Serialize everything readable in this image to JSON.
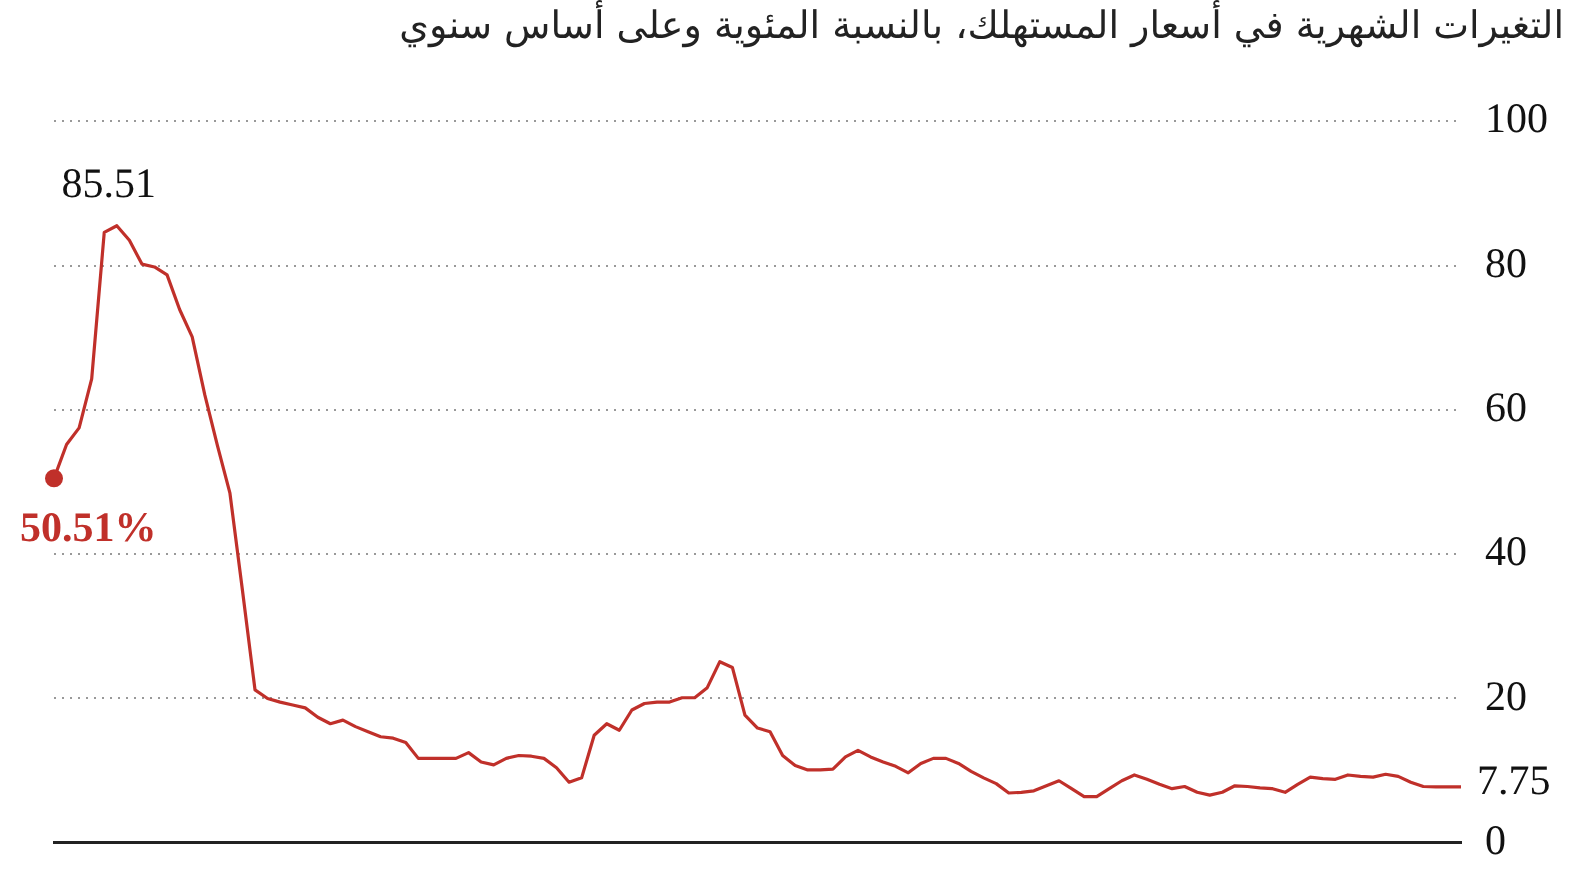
{
  "chart_data": {
    "type": "line",
    "title": "التغيرات الشهرية في أسعار المستهلك، بالنسبة المئوية وعلى أساس سنوي",
    "categories": [
      null,
      null,
      null,
      null,
      null,
      null,
      null,
      null,
      null,
      null,
      null,
      null,
      null,
      null,
      null,
      null,
      null,
      null,
      null,
      null,
      null,
      null,
      null,
      null,
      null,
      null,
      null,
      null,
      null,
      null,
      null,
      null,
      null,
      null,
      null,
      null,
      null,
      null,
      null,
      null,
      null,
      null,
      null,
      null,
      null,
      null,
      null,
      null,
      null,
      null,
      null,
      null,
      null,
      null,
      null,
      null,
      null,
      null,
      null,
      null,
      null,
      null,
      null,
      null,
      null,
      null,
      null,
      null,
      null,
      null,
      null,
      null,
      null,
      null,
      null,
      null,
      null,
      null,
      null,
      null,
      null,
      null,
      null,
      null,
      null,
      null,
      null,
      null,
      null,
      null,
      null,
      null,
      null,
      null,
      null,
      null,
      null,
      null,
      null,
      null,
      null,
      null,
      null,
      null,
      null,
      null,
      null,
      null,
      null,
      null,
      null,
      null,
      null
    ],
    "series": [
      {
        "color": "#c0302a",
        "values": [
          50.51,
          55.2,
          57.5,
          64.3,
          84.6,
          85.51,
          83.5,
          80.2,
          79.8,
          78.7,
          73.9,
          70.1,
          62.1,
          55.1,
          48.5,
          35,
          21.2,
          20,
          19.5,
          19.1,
          18.7,
          17.4,
          16.5,
          17,
          16.1,
          15.4,
          14.7,
          14.5,
          13.9,
          11.7,
          11.7,
          11.7,
          11.7,
          12.5,
          11.2,
          10.8,
          11.7,
          12.1,
          12,
          11.7,
          10.4,
          8.4,
          9,
          14.9,
          16.5,
          15.6,
          18.4,
          19.3,
          19.5,
          19.5,
          20.1,
          20.1,
          21.5,
          25.1,
          24.3,
          17.7,
          15.9,
          15.4,
          12.1,
          10.7,
          10.1,
          10.1,
          10.2,
          11.9,
          12.8,
          11.9,
          11.2,
          10.6,
          9.7,
          11,
          11.7,
          11.7,
          11,
          9.9,
          9,
          8.2,
          6.9,
          7,
          7.2,
          7.9,
          8.6,
          7.5,
          6.4,
          6.4,
          7.5,
          8.6,
          9.4,
          8.8,
          8.1,
          7.5,
          7.8,
          7,
          6.6,
          7,
          7.9,
          7.8,
          7.6,
          7.5,
          7,
          8.1,
          9.1,
          8.9,
          8.8,
          9.4,
          9.2,
          9.1,
          9.5,
          9.2,
          8.4,
          7.8,
          7.75,
          7.75,
          7.75
        ],
        "value_labels": [
          "50.51%",
          null,
          null,
          null,
          null,
          "85.51",
          null,
          null,
          null,
          null,
          null,
          null,
          null,
          null,
          null,
          null,
          null,
          null,
          null,
          null,
          null,
          null,
          null,
          null,
          null,
          null,
          null,
          null,
          null,
          null,
          null,
          null,
          null,
          null,
          null,
          null,
          null,
          null,
          null,
          null,
          null,
          null,
          null,
          null,
          null,
          null,
          null,
          null,
          null,
          null,
          null,
          null,
          null,
          null,
          null,
          null,
          null,
          null,
          null,
          null,
          null,
          null,
          null,
          null,
          null,
          null,
          null,
          null,
          null,
          null,
          null,
          null,
          null,
          null,
          null,
          null,
          null,
          null,
          null,
          null,
          null,
          null,
          null,
          null,
          null,
          null,
          null,
          null,
          null,
          null,
          null,
          null,
          null,
          null,
          null,
          null,
          null,
          null,
          null,
          null,
          null,
          null,
          null,
          null,
          null,
          null,
          null,
          null,
          null,
          null,
          null,
          null,
          "7.75"
        ]
      }
    ],
    "ylim": [
      0,
      100
    ],
    "yticks": [
      0,
      20,
      40,
      60,
      80,
      100
    ],
    "grid": "y",
    "legend": false,
    "line_style": "solid",
    "marker": "none",
    "tick_labels": "y"
  }
}
